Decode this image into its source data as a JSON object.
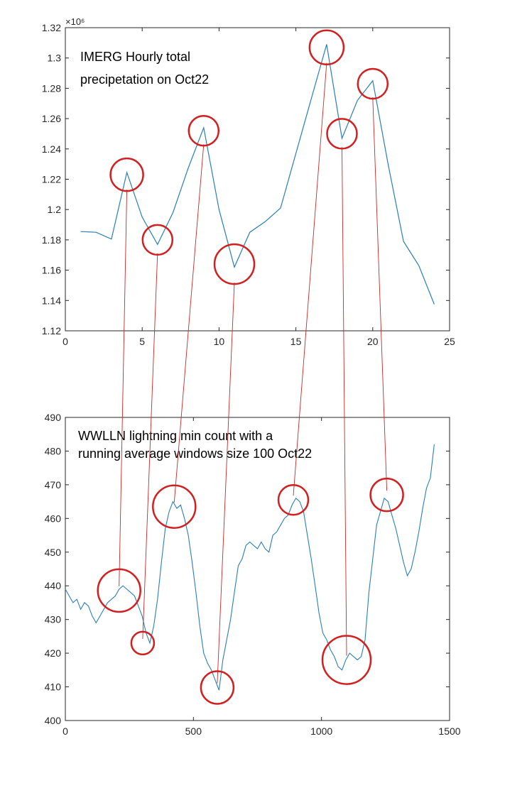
{
  "colors": {
    "series": "#2a7fb5",
    "highlight": "#d21f1f",
    "connector": "#c82a2a",
    "axis": "#262626",
    "background": "#ffffff"
  },
  "chart_data": [
    {
      "type": "line",
      "title": "",
      "xlabel": "",
      "ylabel": "",
      "annotation_lines": [
        "IMERG Hourly total",
        "precipetation on Oct22"
      ],
      "y_exponent_label": "×10⁶",
      "xlim": [
        0,
        25
      ],
      "ylim": [
        1120000,
        1320000
      ],
      "grid": false,
      "x_ticks": [
        0,
        5,
        10,
        15,
        20,
        25
      ],
      "y_ticks": [
        1120000,
        1140000,
        1160000,
        1180000,
        1200000,
        1220000,
        1240000,
        1260000,
        1280000,
        1300000,
        1320000
      ],
      "y_tick_labels": [
        "1.12",
        "1.14",
        "1.16",
        "1.18",
        "1.2",
        "1.22",
        "1.24",
        "1.26",
        "1.28",
        "1.3",
        "1.32"
      ],
      "series": [
        {
          "x": [
            1,
            2,
            3,
            4,
            5,
            6,
            7,
            8,
            9,
            10,
            11,
            12,
            13,
            14,
            15,
            16,
            17,
            18,
            19,
            20,
            21,
            22,
            23,
            24
          ],
          "y": [
            1185500,
            1185000,
            1180500,
            1224500,
            1195000,
            1177000,
            1198000,
            1227500,
            1254000,
            1200000,
            1162000,
            1185000,
            1192000,
            1201000,
            1237000,
            1273000,
            1309000,
            1247000,
            1272000,
            1285000,
            1230000,
            1179000,
            1163000,
            1137500
          ]
        }
      ],
      "highlights": [
        {
          "x": 4,
          "y": 1223000
        },
        {
          "x": 6,
          "y": 1180000
        },
        {
          "x": 9,
          "y": 1252000
        },
        {
          "x": 11,
          "y": 1164000
        },
        {
          "x": 17,
          "y": 1307000
        },
        {
          "x": 18,
          "y": 1250000
        },
        {
          "x": 20,
          "y": 1283000
        }
      ]
    },
    {
      "type": "line",
      "title": "",
      "xlabel": "",
      "ylabel": "",
      "annotation_lines": [
        "WWLLN lightning min count with a",
        "running average windows size 100 Oct22"
      ],
      "xlim": [
        0,
        1500
      ],
      "ylim": [
        400,
        490
      ],
      "grid": false,
      "x_ticks": [
        0,
        500,
        1000,
        1500
      ],
      "y_ticks": [
        400,
        410,
        420,
        430,
        440,
        450,
        460,
        470,
        480,
        490
      ],
      "series": [
        {
          "x": [
            0,
            15,
            30,
            45,
            60,
            75,
            90,
            105,
            120,
            135,
            150,
            165,
            180,
            195,
            210,
            225,
            240,
            255,
            270,
            285,
            300,
            315,
            330,
            345,
            360,
            375,
            390,
            405,
            420,
            435,
            450,
            465,
            480,
            495,
            510,
            525,
            540,
            555,
            570,
            585,
            600,
            615,
            630,
            645,
            660,
            675,
            690,
            705,
            720,
            735,
            750,
            765,
            780,
            795,
            810,
            825,
            840,
            855,
            870,
            885,
            900,
            915,
            930,
            945,
            960,
            975,
            990,
            1005,
            1020,
            1035,
            1050,
            1065,
            1080,
            1095,
            1110,
            1125,
            1140,
            1155,
            1170,
            1185,
            1200,
            1215,
            1230,
            1245,
            1260,
            1275,
            1290,
            1305,
            1320,
            1335,
            1350,
            1365,
            1380,
            1395,
            1410,
            1425,
            1440
          ],
          "y": [
            439,
            437,
            435,
            436,
            433,
            435,
            434,
            431,
            429,
            431,
            433,
            435,
            436,
            437,
            439,
            440,
            439,
            438,
            437,
            434,
            431,
            426,
            423,
            428,
            436,
            447,
            457,
            462,
            465,
            463,
            464,
            460,
            455,
            447,
            438,
            428,
            420,
            417,
            415,
            412,
            409,
            418,
            424,
            430,
            438,
            446,
            448,
            452,
            453,
            452,
            451,
            453,
            451,
            450,
            455,
            456,
            458,
            460,
            461,
            464,
            466,
            465,
            462,
            455,
            448,
            440,
            432,
            426,
            424,
            421,
            419,
            416,
            415,
            418,
            420,
            419,
            418,
            419,
            424,
            438,
            448,
            458,
            462,
            466,
            465,
            461,
            457,
            452,
            447,
            443,
            445,
            450,
            456,
            463,
            469,
            472,
            482
          ]
        }
      ],
      "highlights": [
        {
          "x": 210,
          "y": 438.6
        },
        {
          "x": 302,
          "y": 423
        },
        {
          "x": 425,
          "y": 463.5
        },
        {
          "x": 593,
          "y": 409.8
        },
        {
          "x": 890,
          "y": 465.5
        },
        {
          "x": 1098,
          "y": 418
        },
        {
          "x": 1255,
          "y": 467
        }
      ]
    }
  ]
}
